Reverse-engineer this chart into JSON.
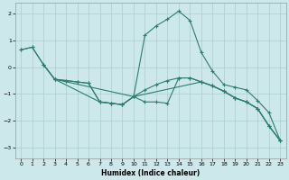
{
  "xlabel": "Humidex (Indice chaleur)",
  "bg_color": "#cce8ea",
  "grid_color": "#aacccc",
  "line_color": "#2e7d6e",
  "xlim": [
    -0.5,
    23.5
  ],
  "ylim": [
    -3.4,
    2.4
  ],
  "yticks": [
    -3,
    -2,
    -1,
    0,
    1,
    2
  ],
  "xticks": [
    0,
    1,
    2,
    3,
    4,
    5,
    6,
    7,
    8,
    9,
    10,
    11,
    12,
    13,
    14,
    15,
    16,
    17,
    18,
    19,
    20,
    21,
    22,
    23
  ],
  "lines": [
    {
      "x": [
        0,
        1,
        2,
        3,
        4,
        5,
        6,
        7,
        8,
        9,
        10,
        11,
        12,
        13,
        14,
        15,
        16,
        17,
        18,
        19,
        20,
        21,
        22,
        23
      ],
      "y": [
        0.65,
        0.75,
        0.1,
        -0.45,
        -0.5,
        -0.55,
        -0.6,
        -1.3,
        -1.35,
        -1.4,
        -1.1,
        -0.85,
        -0.65,
        -0.5,
        -0.4,
        -0.4,
        -0.55,
        -0.7,
        -0.9,
        -1.15,
        -1.3,
        -1.55,
        -2.2,
        -2.75
      ]
    },
    {
      "x": [
        0,
        1,
        2,
        3,
        10,
        11,
        12,
        13,
        14,
        15,
        16,
        17,
        18,
        19,
        20,
        21,
        22,
        23
      ],
      "y": [
        0.65,
        0.75,
        0.1,
        -0.45,
        -1.1,
        1.2,
        1.55,
        1.8,
        2.1,
        1.75,
        0.55,
        -0.15,
        -0.65,
        -0.75,
        -0.85,
        -1.25,
        -1.7,
        -2.75
      ]
    },
    {
      "x": [
        3,
        4,
        5,
        6,
        7,
        8,
        9,
        10,
        11,
        12,
        13,
        14,
        15,
        16,
        17,
        18,
        19,
        20,
        21,
        22,
        23
      ],
      "y": [
        -0.45,
        -0.5,
        -0.55,
        -0.6,
        -1.3,
        -1.35,
        -1.4,
        -1.1,
        -1.3,
        -1.3,
        -1.35,
        -0.4,
        -0.4,
        -0.55,
        -0.7,
        -0.9,
        -1.15,
        -1.3,
        -1.55,
        -2.2,
        -2.75
      ]
    },
    {
      "x": [
        2,
        3,
        7,
        8,
        9,
        10,
        16,
        17,
        18,
        19,
        20,
        21,
        22,
        23
      ],
      "y": [
        0.1,
        -0.45,
        -1.3,
        -1.35,
        -1.4,
        -1.1,
        -0.55,
        -0.7,
        -0.9,
        -1.15,
        -1.3,
        -1.55,
        -2.2,
        -2.75
      ]
    }
  ]
}
